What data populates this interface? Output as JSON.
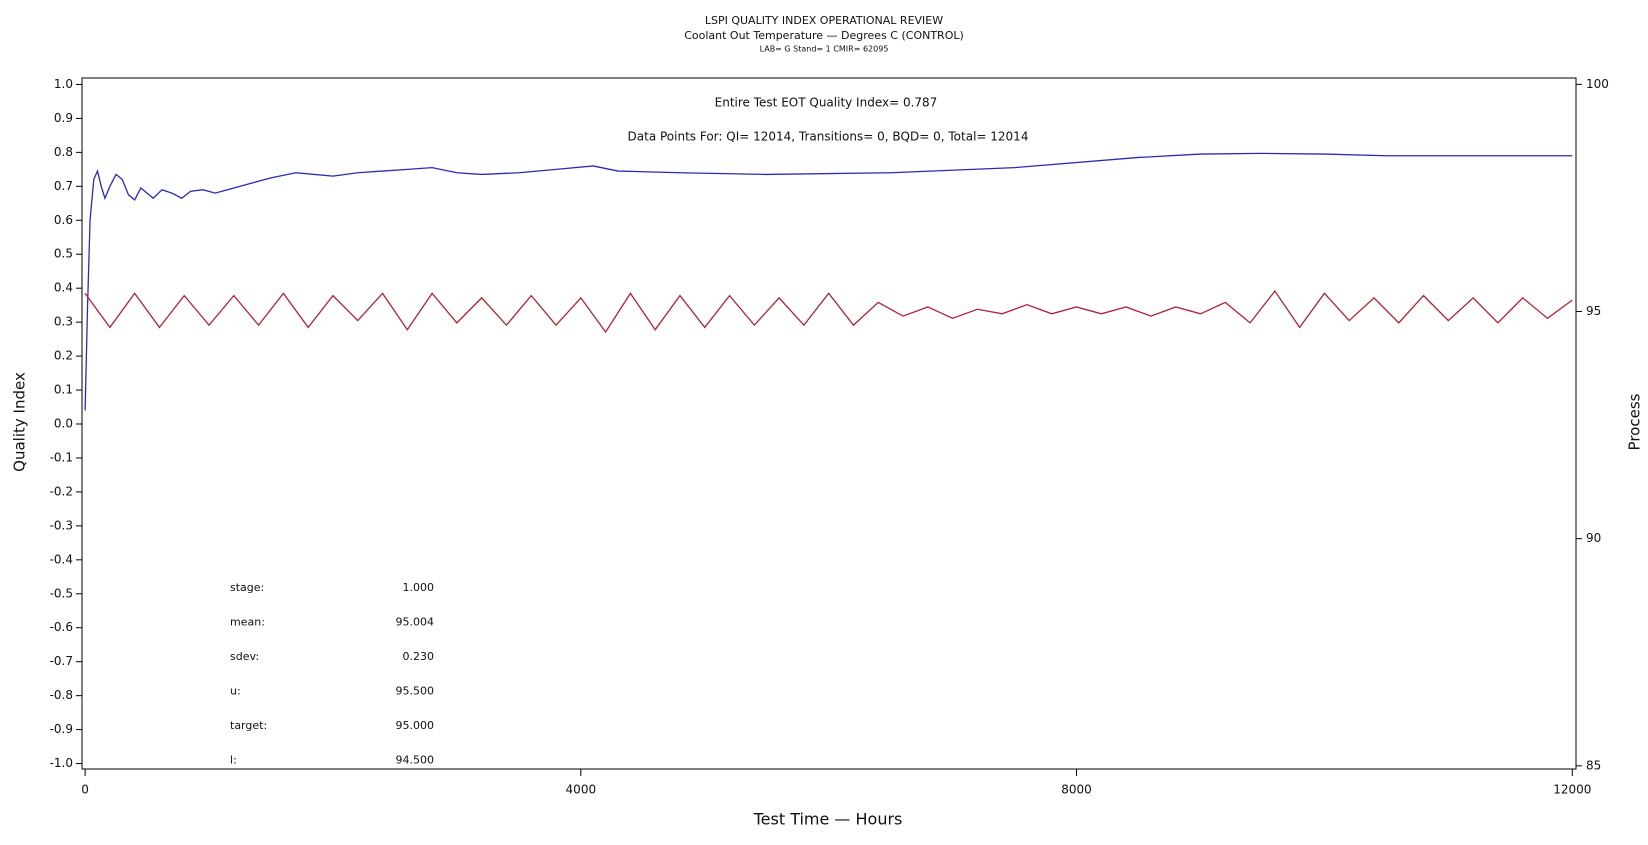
{
  "chart_data": {
    "type": "line",
    "title": "LSPI QUALITY INDEX OPERATIONAL REVIEW",
    "subtitle": "Coolant Out Temperature — Degrees C (CONTROL)",
    "subtitle2": "LAB= G Stand= 1 CMIR= 62095",
    "annotations": [
      "Entire Test EOT Quality Index=   0.787",
      "Data Points For: QI= 12014, Transitions=     0, BQD=     0, Total= 12014"
    ],
    "stats": [
      {
        "label": "stage:",
        "value": "1.000"
      },
      {
        "label": "mean:",
        "value": "95.004"
      },
      {
        "label": "sdev:",
        "value": "0.230"
      },
      {
        "label": "u:",
        "value": "95.500"
      },
      {
        "label": "target:",
        "value": "95.000"
      },
      {
        "label": "l:",
        "value": "94.500"
      }
    ],
    "x_label": "Test Time — Hours",
    "y_label": "Quality Index",
    "y2_label": "Process",
    "xlim": [
      -25,
      12030
    ],
    "xticks": [
      0,
      4000,
      8000,
      12000
    ],
    "ylim": [
      -1.016,
      1.019
    ],
    "yticks": [
      {
        "value": 1,
        "label": "1.0"
      },
      0.9,
      0.8,
      0.7,
      0.6,
      0.5,
      0.4,
      0.3,
      0.2,
      0.1,
      {
        "value": 0,
        "label": "0.0"
      },
      -0.1,
      -0.2,
      -0.3,
      -0.4,
      -0.5,
      -0.6,
      -0.7,
      -0.8,
      -0.9,
      {
        "value": -1,
        "label": "-1.0"
      }
    ],
    "y2lim": [
      84.93,
      100.14
    ],
    "y2ticks": [
      85,
      90,
      95,
      100
    ],
    "series": [
      {
        "name": "Quality Index",
        "color": "#2a2ab8",
        "x": [
          0,
          20,
          40,
          70,
          100,
          130,
          160,
          200,
          250,
          300,
          350,
          400,
          450,
          500,
          550,
          620,
          700,
          780,
          850,
          950,
          1050,
          1150,
          1300,
          1500,
          1700,
          1850,
          2000,
          2200,
          2400,
          2600,
          2800,
          3000,
          3200,
          3500,
          3800,
          4100,
          4300,
          4800,
          5500,
          6500,
          7500,
          8500,
          9000,
          9500,
          10000,
          10500,
          11000,
          11500,
          12000
        ],
        "values": [
          0.04,
          0.35,
          0.6,
          0.72,
          0.745,
          0.7,
          0.665,
          0.7,
          0.735,
          0.72,
          0.675,
          0.66,
          0.695,
          0.68,
          0.665,
          0.69,
          0.68,
          0.665,
          0.685,
          0.69,
          0.68,
          0.69,
          0.705,
          0.725,
          0.74,
          0.735,
          0.73,
          0.74,
          0.745,
          0.75,
          0.755,
          0.74,
          0.735,
          0.74,
          0.75,
          0.76,
          0.745,
          0.74,
          0.735,
          0.74,
          0.755,
          0.785,
          0.795,
          0.797,
          0.795,
          0.79,
          0.79,
          0.79,
          0.79
        ]
      },
      {
        "name": "Process",
        "color": "#b22234",
        "axis": "y2",
        "x": [
          0,
          200,
          400,
          600,
          800,
          1000,
          1200,
          1400,
          1600,
          1800,
          2000,
          2200,
          2400,
          2600,
          2800,
          3000,
          3200,
          3400,
          3600,
          3800,
          4000,
          4200,
          4400,
          4600,
          4800,
          5000,
          5200,
          5400,
          5600,
          5800,
          6000,
          6200,
          6400,
          6600,
          6800,
          7000,
          7200,
          7400,
          7600,
          7800,
          8000,
          8200,
          8400,
          8600,
          8800,
          9000,
          9200,
          9400,
          9600,
          9800,
          10000,
          10200,
          10400,
          10600,
          10800,
          11000,
          11200,
          11400,
          11600,
          11800,
          12000
        ],
        "values": [
          95.4,
          94.65,
          95.4,
          94.65,
          95.35,
          94.7,
          95.35,
          94.7,
          95.4,
          94.65,
          95.35,
          94.8,
          95.4,
          94.6,
          95.4,
          94.75,
          95.3,
          94.7,
          95.35,
          94.7,
          95.3,
          94.55,
          95.4,
          94.6,
          95.35,
          94.65,
          95.35,
          94.7,
          95.3,
          94.7,
          95.4,
          94.7,
          95.2,
          94.9,
          95.1,
          94.85,
          95.05,
          94.95,
          95.15,
          94.95,
          95.1,
          94.95,
          95.1,
          94.9,
          95.1,
          94.95,
          95.2,
          94.75,
          95.45,
          94.65,
          95.4,
          94.8,
          95.3,
          94.75,
          95.35,
          94.8,
          95.3,
          94.75,
          95.3,
          94.85,
          95.25
        ]
      }
    ]
  }
}
